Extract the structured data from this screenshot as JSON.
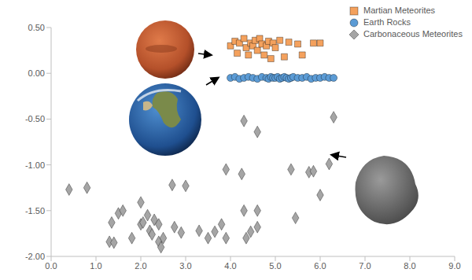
{
  "chart_data": {
    "type": "scatter",
    "xlim": [
      0,
      9
    ],
    "xticks": [
      {
        "value": 0,
        "label": "0.0"
      },
      {
        "value": 1,
        "label": "1.0"
      },
      {
        "value": 2,
        "label": "2.0"
      },
      {
        "value": 3,
        "label": "3.0"
      },
      {
        "value": 4,
        "label": "4.0"
      },
      {
        "value": 5,
        "label": "5.0"
      },
      {
        "value": 6,
        "label": "6.0"
      },
      {
        "value": 7,
        "label": "7.0"
      },
      {
        "value": 8,
        "label": "8.0"
      },
      {
        "value": 9,
        "label": "9.0"
      }
    ],
    "ylim": [
      -2,
      0.5
    ],
    "yticks": [
      {
        "value": -2,
        "label": "-2.00"
      },
      {
        "value": -1.5,
        "label": "-1.50"
      },
      {
        "value": -1,
        "label": "-1.00"
      },
      {
        "value": -0.5,
        "label": "-0.50"
      },
      {
        "value": 0,
        "label": "0.00"
      },
      {
        "value": 0.5,
        "label": "0.50"
      }
    ],
    "grid": false,
    "legend": "upper right",
    "series": [
      {
        "name": "Martian Meteorites",
        "color": "#f4a15d",
        "marker": "square",
        "x": [
          4.0,
          4.1,
          4.15,
          4.2,
          4.3,
          4.35,
          4.4,
          4.45,
          4.5,
          4.55,
          4.6,
          4.65,
          4.7,
          4.75,
          4.8,
          4.85,
          4.9,
          4.95,
          5.0,
          5.1,
          5.2,
          5.3,
          5.5,
          5.6,
          5.85,
          6.0
        ],
        "y": [
          0.3,
          0.35,
          0.22,
          0.33,
          0.38,
          0.28,
          0.2,
          0.33,
          0.3,
          0.36,
          0.25,
          0.38,
          0.32,
          0.2,
          0.3,
          0.35,
          0.16,
          0.33,
          0.28,
          0.36,
          0.18,
          0.34,
          0.32,
          0.2,
          0.33,
          0.33
        ]
      },
      {
        "name": "Earth Rocks",
        "color": "#5b9bd5",
        "marker": "circle",
        "x": [
          4.0,
          4.1,
          4.2,
          4.3,
          4.4,
          4.5,
          4.6,
          4.7,
          4.8,
          4.85,
          4.9,
          4.95,
          5.0,
          5.05,
          5.1,
          5.15,
          5.2,
          5.25,
          5.3,
          5.35,
          5.4,
          5.5,
          5.6,
          5.7,
          5.8,
          5.9,
          6.0,
          6.1,
          6.2,
          6.3
        ],
        "y": [
          -0.05,
          -0.04,
          -0.06,
          -0.05,
          -0.04,
          -0.05,
          -0.06,
          -0.04,
          -0.05,
          -0.06,
          -0.04,
          -0.05,
          -0.05,
          -0.04,
          -0.06,
          -0.05,
          -0.04,
          -0.05,
          -0.06,
          -0.05,
          -0.04,
          -0.05,
          -0.05,
          -0.04,
          -0.06,
          -0.05,
          -0.05,
          -0.04,
          -0.05,
          -0.05
        ]
      },
      {
        "name": "Carbonaceous Meteorites",
        "color": "#a5a5a5",
        "marker": "diamond",
        "x": [
          0.4,
          0.8,
          1.3,
          1.4,
          1.35,
          1.5,
          1.6,
          1.8,
          2.0,
          2.0,
          2.05,
          2.15,
          2.2,
          2.25,
          2.3,
          2.4,
          2.4,
          2.45,
          2.5,
          2.7,
          2.75,
          2.9,
          3.0,
          3.3,
          3.5,
          3.65,
          3.8,
          3.9,
          3.9,
          4.3,
          4.25,
          4.3,
          4.35,
          4.45,
          4.6,
          4.6,
          4.6,
          5.35,
          5.45,
          5.75,
          5.85,
          6.0,
          6.2,
          6.3
        ],
        "y": [
          -1.27,
          -1.25,
          -1.84,
          -1.85,
          -1.63,
          -1.53,
          -1.5,
          -1.8,
          -1.41,
          -1.65,
          -1.63,
          -1.55,
          -1.72,
          -1.76,
          -1.6,
          -1.65,
          -1.84,
          -1.9,
          -1.8,
          -1.22,
          -1.68,
          -1.74,
          -1.23,
          -1.72,
          -1.8,
          -1.73,
          -1.65,
          -1.05,
          -1.8,
          -0.52,
          -1.1,
          -1.5,
          -1.8,
          -1.73,
          -0.64,
          -1.5,
          -1.68,
          -1.05,
          -1.58,
          -1.08,
          -1.07,
          -1.33,
          -0.99,
          -0.48
        ]
      }
    ]
  }
}
